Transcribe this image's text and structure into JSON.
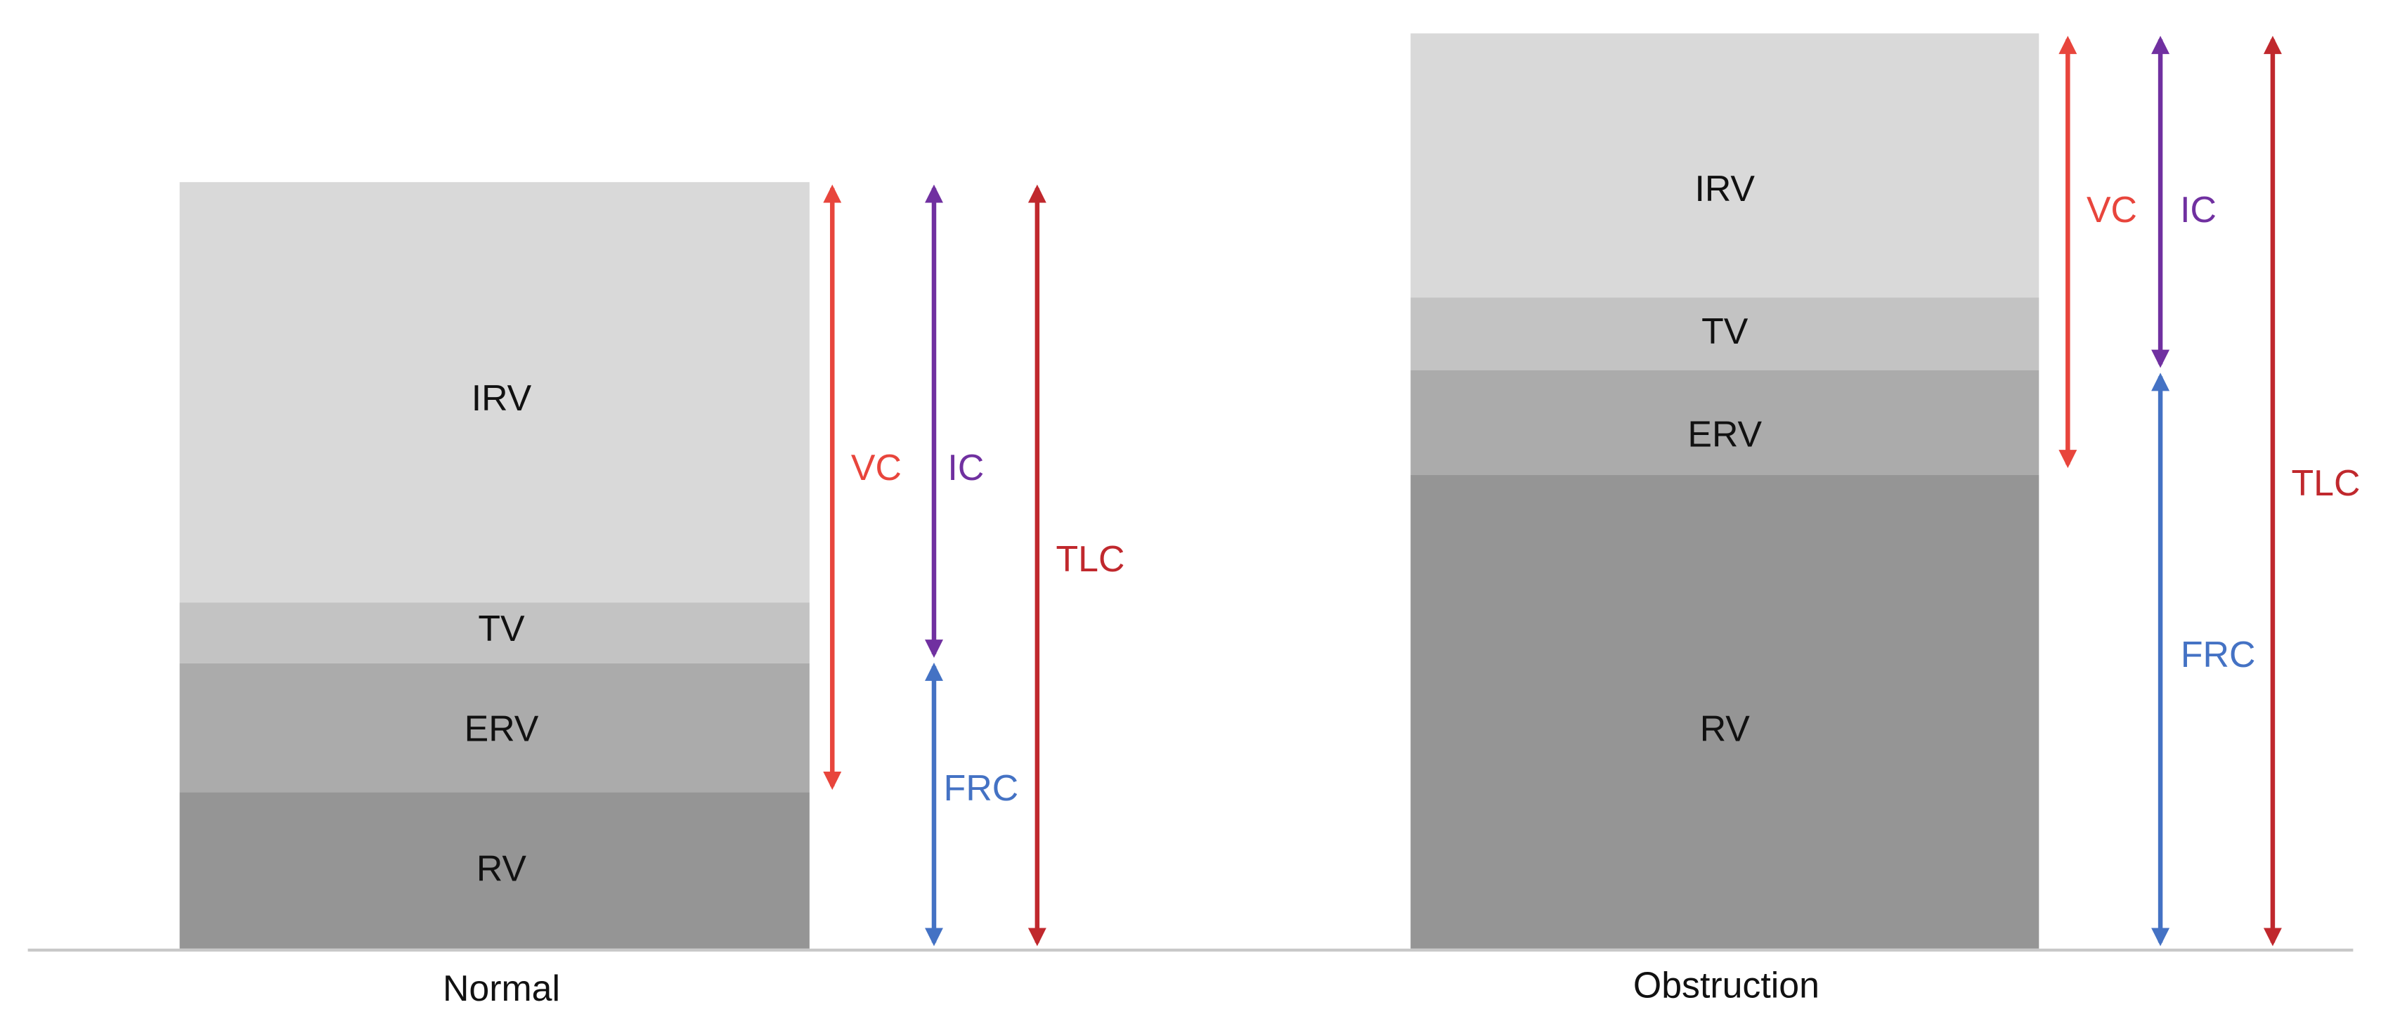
{
  "panels": [
    {
      "label": "Normal",
      "segments": [
        "IRV",
        "TV",
        "ERV",
        "RV"
      ],
      "arrows": [
        "VC",
        "IC",
        "FRC",
        "TLC"
      ]
    },
    {
      "label": "Obstruction",
      "segments": [
        "IRV",
        "TV",
        "ERV",
        "RV"
      ],
      "arrows": [
        "VC",
        "IC",
        "FRC",
        "TLC"
      ]
    }
  ]
}
